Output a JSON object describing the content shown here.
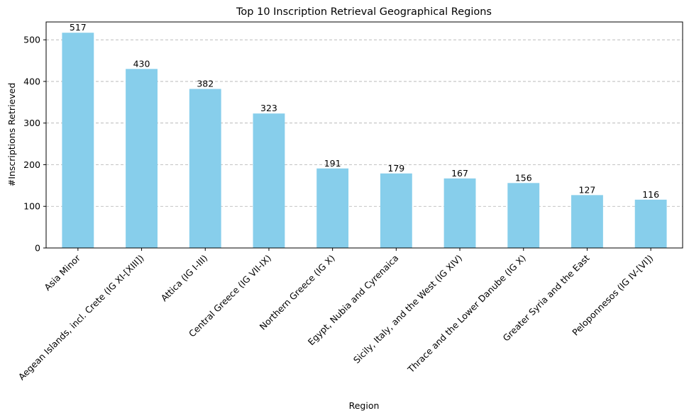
{
  "chart_data": {
    "type": "bar",
    "title": "Top 10 Inscription Retrieval Geographical Regions",
    "xlabel": "Region",
    "ylabel": "#Inscriptions Retrieved",
    "categories": [
      "Asia Minor",
      "Aegean Islands, incl. Crete (IG XI-[XIII])",
      "Attica (IG I-III)",
      "Central Greece (IG VII-IX)",
      "Northern Greece (IG X)",
      "Egypt, Nubia and Cyrenaica",
      "Sicily, Italy, and the West (IG XIV)",
      "Thrace and the Lower Danube (IG X)",
      "Greater Syria and the East",
      "Peloponnesos (IG IV-[VI])"
    ],
    "values": [
      517,
      430,
      382,
      323,
      191,
      179,
      167,
      156,
      127,
      116
    ],
    "data_labels": [
      "517",
      "430",
      "382",
      "323",
      "191",
      "179",
      "167",
      "156",
      "127",
      "116"
    ],
    "yticks": [
      0,
      100,
      200,
      300,
      400,
      500
    ],
    "ylim": [
      0,
      542.85
    ],
    "grid": "y-dashed",
    "bar_color": "#87ceeb"
  }
}
